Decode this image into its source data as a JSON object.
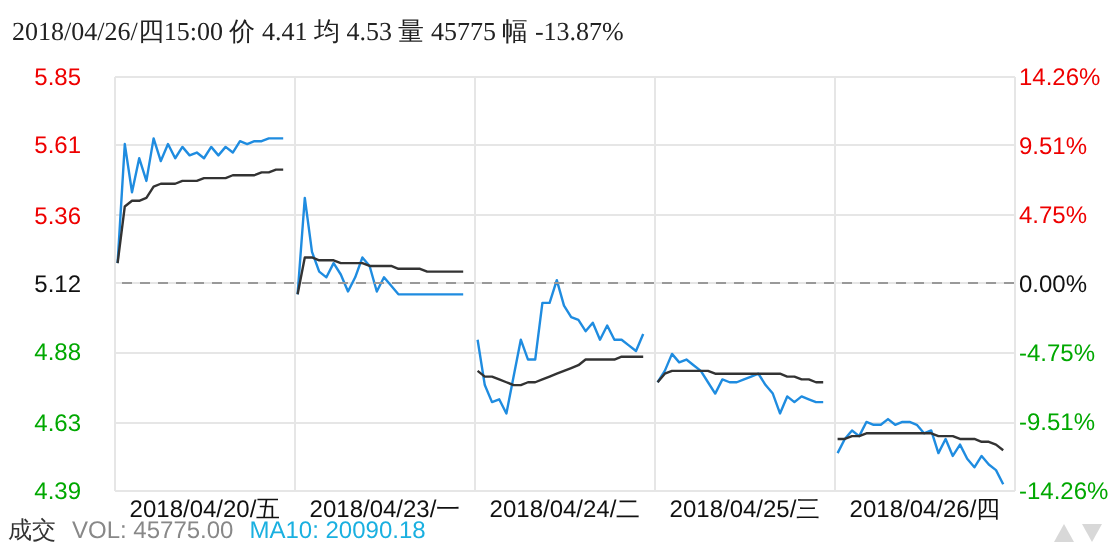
{
  "chart_data": {
    "type": "line",
    "annotations": [
      "2018/04/26/四15:00 价 4.41 均 4.53 量 45775 幅 -13.87%",
      "成交",
      "VOL: 45775.00",
      "MA10: 20090.18"
    ],
    "categories": [
      null,
      null,
      null,
      null,
      null,
      null,
      null,
      null,
      null,
      null,
      null,
      null,
      "2018/04/20/五",
      null,
      null,
      null,
      null,
      null,
      null,
      null,
      null,
      null,
      null,
      null,
      null,
      null,
      null,
      null,
      null,
      null,
      null,
      null,
      null,
      null,
      null,
      null,
      null,
      "2018/04/23/一",
      null,
      null,
      null,
      null,
      null,
      null,
      null,
      null,
      null,
      null,
      null,
      null,
      null,
      null,
      null,
      null,
      null,
      null,
      null,
      null,
      null,
      null,
      null,
      null,
      "2018/04/24/二",
      null,
      null,
      null,
      null,
      null,
      null,
      null,
      null,
      null,
      null,
      null,
      null,
      null,
      null,
      null,
      null,
      null,
      null,
      null,
      null,
      null,
      null,
      null,
      null,
      "2018/04/25/三",
      null,
      null,
      null,
      null,
      null,
      null,
      null,
      null,
      null,
      null,
      null,
      null,
      null,
      null,
      null,
      null,
      null,
      null,
      null,
      null,
      null,
      null,
      null,
      null,
      "2018/04/26/四",
      null,
      null,
      null,
      null,
      null,
      null,
      null,
      null,
      null,
      null,
      null,
      null
    ],
    "ylim": [
      4.39,
      5.85
    ],
    "yticks": [
      4.39,
      4.63,
      4.88,
      5.12,
      5.36,
      5.61,
      5.85
    ],
    "y2lim": [
      -14.26,
      14.26
    ],
    "y2ticks": [
      {
        "value": -14.26,
        "label": "-14.26%"
      },
      {
        "value": -9.51,
        "label": "-9.51%"
      },
      {
        "value": -4.75,
        "label": "-4.75%"
      },
      {
        "value": 0,
        "label": "0.00%"
      },
      {
        "value": 4.75,
        "label": "4.75%"
      },
      {
        "value": 9.51,
        "label": "9.51%"
      },
      {
        "value": 14.26,
        "label": "14.26%"
      }
    ],
    "grid": true,
    "marker": "none",
    "line_style": "solid",
    "ref_lines": [
      {
        "axis": "y2",
        "value": 0,
        "color": "#999999",
        "line_style": "dashed"
      }
    ],
    "series": [
      {
        "color": "#1f8ce0",
        "values": [
          5.19,
          5.61,
          5.44,
          5.56,
          5.48,
          5.63,
          5.55,
          5.61,
          5.56,
          5.6,
          5.57,
          5.58,
          5.56,
          5.6,
          5.57,
          5.6,
          5.58,
          5.62,
          5.61,
          5.62,
          5.62,
          5.63,
          5.63,
          5.63,
          null,
          5.08,
          5.42,
          5.23,
          5.16,
          5.14,
          5.19,
          5.15,
          5.09,
          5.14,
          5.21,
          5.18,
          5.09,
          5.14,
          5.11,
          5.08,
          5.08,
          5.08,
          5.08,
          5.08,
          5.08,
          5.08,
          5.08,
          5.08,
          5.08,
          null,
          4.92,
          4.76,
          4.7,
          4.71,
          4.66,
          4.79,
          4.92,
          4.85,
          4.85,
          5.05,
          5.05,
          5.13,
          5.04,
          5.0,
          4.99,
          4.95,
          4.98,
          4.92,
          4.97,
          4.92,
          4.92,
          4.9,
          4.88,
          4.94,
          null,
          4.77,
          4.81,
          4.87,
          4.84,
          4.85,
          4.83,
          4.81,
          4.77,
          4.73,
          4.78,
          4.77,
          4.77,
          4.78,
          4.79,
          4.8,
          4.76,
          4.73,
          4.66,
          4.72,
          4.7,
          4.72,
          4.71,
          4.7,
          4.7,
          null,
          4.52,
          4.57,
          4.6,
          4.58,
          4.63,
          4.62,
          4.62,
          4.64,
          4.62,
          4.63,
          4.63,
          4.62,
          4.59,
          4.6,
          4.52,
          4.57,
          4.51,
          4.55,
          4.5,
          4.47,
          4.51,
          4.48,
          4.46,
          4.41,
          null
        ]
      },
      {
        "color": "#333333",
        "values": [
          5.19,
          5.39,
          5.41,
          5.41,
          5.42,
          5.46,
          5.47,
          5.47,
          5.47,
          5.48,
          5.48,
          5.48,
          5.49,
          5.49,
          5.49,
          5.49,
          5.5,
          5.5,
          5.5,
          5.5,
          5.51,
          5.51,
          5.52,
          5.52,
          null,
          5.08,
          5.21,
          5.21,
          5.2,
          5.2,
          5.2,
          5.19,
          5.19,
          5.19,
          5.19,
          5.18,
          5.18,
          5.18,
          5.18,
          5.17,
          5.17,
          5.17,
          5.17,
          5.16,
          5.16,
          5.16,
          5.16,
          5.16,
          5.16,
          null,
          4.81,
          4.79,
          4.79,
          4.78,
          4.77,
          4.76,
          4.76,
          4.77,
          4.77,
          4.78,
          4.79,
          4.8,
          4.81,
          4.82,
          4.83,
          4.85,
          4.85,
          4.85,
          4.85,
          4.85,
          4.86,
          4.86,
          4.86,
          4.86,
          null,
          4.77,
          4.8,
          4.81,
          4.81,
          4.81,
          4.81,
          4.81,
          4.81,
          4.8,
          4.8,
          4.8,
          4.8,
          4.8,
          4.8,
          4.8,
          4.8,
          4.8,
          4.8,
          4.79,
          4.79,
          4.78,
          4.78,
          4.77,
          4.77,
          null,
          4.57,
          4.57,
          4.58,
          4.58,
          4.59,
          4.59,
          4.59,
          4.59,
          4.59,
          4.59,
          4.59,
          4.59,
          4.59,
          4.59,
          4.58,
          4.58,
          4.58,
          4.57,
          4.57,
          4.57,
          4.56,
          4.56,
          4.55,
          4.53,
          null
        ]
      }
    ]
  }
}
